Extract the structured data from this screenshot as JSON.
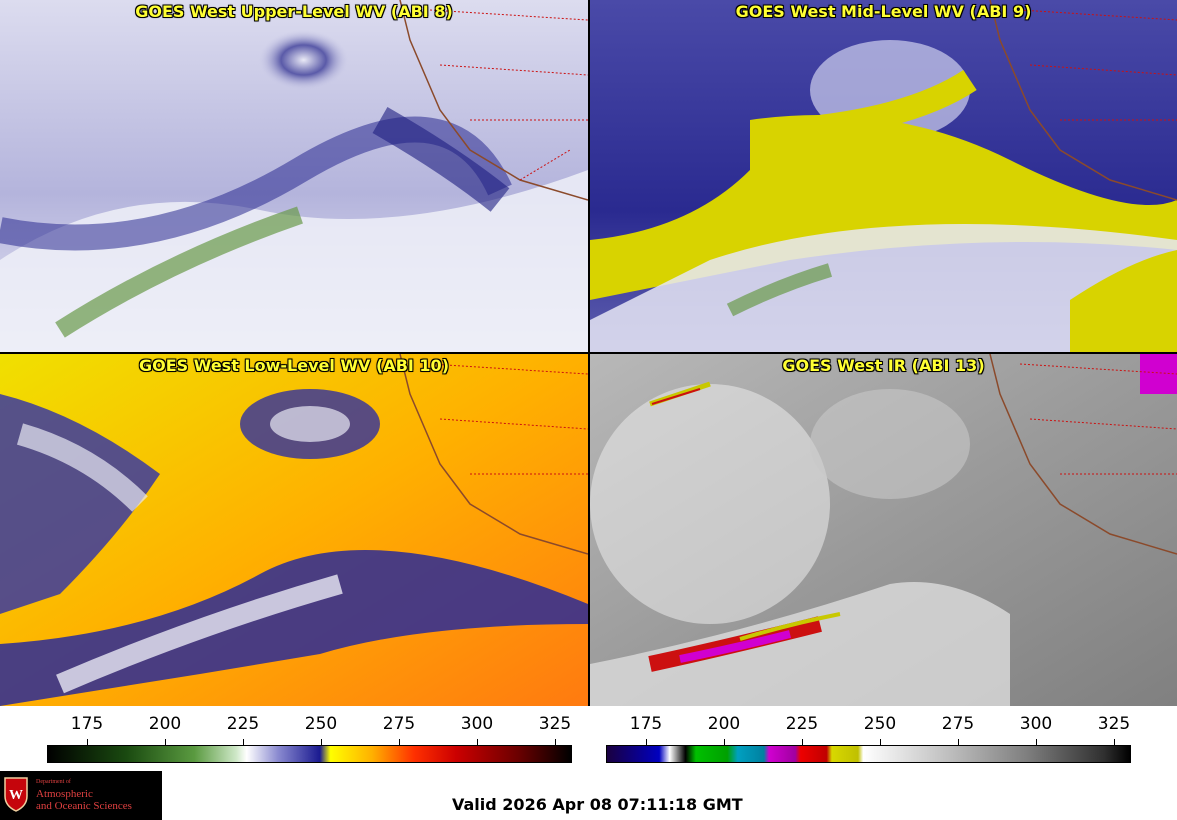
{
  "panels": [
    {
      "title": "GOES West Upper-Level WV (ABI 8)"
    },
    {
      "title": "GOES West Mid-Level WV (ABI 9)"
    },
    {
      "title": "GOES West Low-Level WV (ABI 10)"
    },
    {
      "title": "GOES West IR (ABI 13)"
    }
  ],
  "colorbars": [
    {
      "ticks": [
        "175",
        "200",
        "225",
        "250",
        "275",
        "300",
        "325"
      ]
    },
    {
      "ticks": [
        "175",
        "200",
        "225",
        "250",
        "275",
        "300",
        "325"
      ]
    }
  ],
  "logo": {
    "line1": "Department of",
    "line2": "Atmospheric",
    "line3": "and Oceanic Sciences"
  },
  "valid_time": "Valid 2026 Apr 08 07:11:18 GMT"
}
